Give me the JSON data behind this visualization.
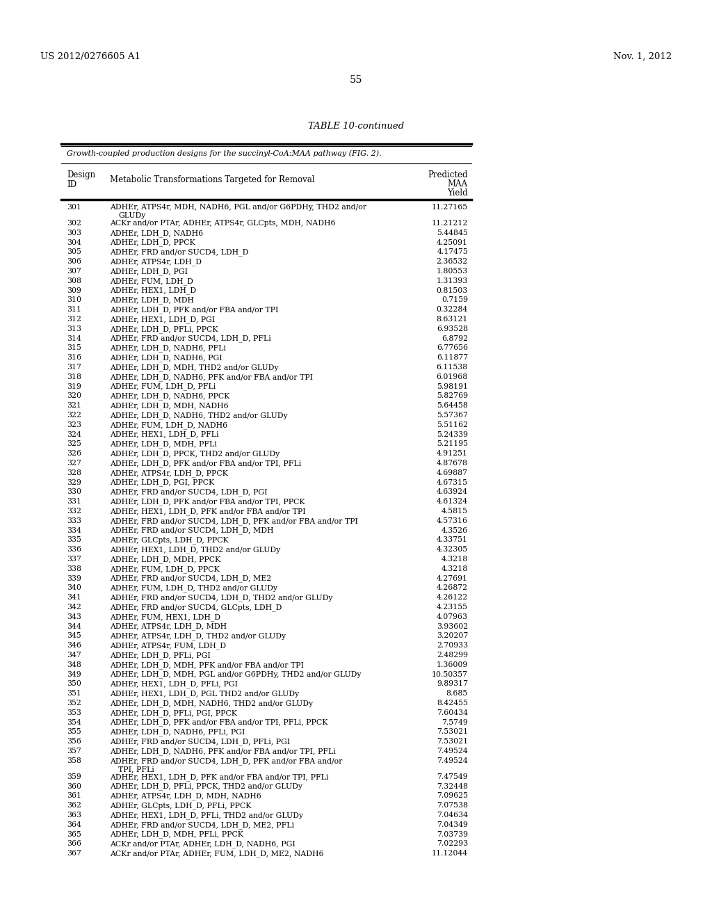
{
  "header_left": "US 2012/0276605 A1",
  "header_right": "Nov. 1, 2012",
  "page_number": "55",
  "table_title": "TABLE 10-continued",
  "table_subtitle": "Growth-coupled production designs for the succinyl-CoA:MAA pathway (FIG. 2).",
  "rows": [
    [
      "301",
      "ADHEr, ATPS4r, MDH, NADH6, PGL and/or G6PDHy, THD2 and/or",
      "GLUDy",
      "11.27165"
    ],
    [
      "302",
      "ACKr and/or PTAr, ADHEr, ATPS4r, GLCpts, MDH, NADH6",
      "",
      "11.21212"
    ],
    [
      "303",
      "ADHEr, LDH_D, NADH6",
      "",
      "5.44845"
    ],
    [
      "304",
      "ADHEr, LDH_D, PPCK",
      "",
      "4.25091"
    ],
    [
      "305",
      "ADHEr, FRD and/or SUCD4, LDH_D",
      "",
      "4.17475"
    ],
    [
      "306",
      "ADHEr, ATPS4r, LDH_D",
      "",
      "2.36532"
    ],
    [
      "307",
      "ADHEr, LDH_D, PGI",
      "",
      "1.80553"
    ],
    [
      "308",
      "ADHEr, FUM, LDH_D",
      "",
      "1.31393"
    ],
    [
      "309",
      "ADHEr, HEX1, LDH_D",
      "",
      "0.81503"
    ],
    [
      "310",
      "ADHEr, LDH_D, MDH",
      "",
      "0.7159"
    ],
    [
      "311",
      "ADHEr, LDH_D, PFK and/or FBA and/or TPI",
      "",
      "0.32284"
    ],
    [
      "312",
      "ADHEr, HEX1, LDH_D, PGI",
      "",
      "8.63121"
    ],
    [
      "313",
      "ADHEr, LDH_D, PFLi, PPCK",
      "",
      "6.93528"
    ],
    [
      "314",
      "ADHEr, FRD and/or SUCD4, LDH_D, PFLi",
      "",
      "6.8792"
    ],
    [
      "315",
      "ADHEr, LDH_D, NADH6, PFLi",
      "",
      "6.77656"
    ],
    [
      "316",
      "ADHEr, LDH_D, NADH6, PGI",
      "",
      "6.11877"
    ],
    [
      "317",
      "ADHEr, LDH_D, MDH, THD2 and/or GLUDy",
      "",
      "6.11538"
    ],
    [
      "318",
      "ADHEr, LDH_D, NADH6, PFK and/or FBA and/or TPI",
      "",
      "6.01968"
    ],
    [
      "319",
      "ADHEr, FUM, LDH_D, PFLi",
      "",
      "5.98191"
    ],
    [
      "320",
      "ADHEr, LDH_D, NADH6, PPCK",
      "",
      "5.82769"
    ],
    [
      "321",
      "ADHEr, LDH_D, MDH, NADH6",
      "",
      "5.64458"
    ],
    [
      "322",
      "ADHEr, LDH_D, NADH6, THD2 and/or GLUDy",
      "",
      "5.57367"
    ],
    [
      "323",
      "ADHEr, FUM, LDH_D, NADH6",
      "",
      "5.51162"
    ],
    [
      "324",
      "ADHEr, HEX1, LDH_D, PFLi",
      "",
      "5.24339"
    ],
    [
      "325",
      "ADHEr, LDH_D, MDH, PFLi",
      "",
      "5.21195"
    ],
    [
      "326",
      "ADHEr, LDH_D, PPCK, THD2 and/or GLUDy",
      "",
      "4.91251"
    ],
    [
      "327",
      "ADHEr, LDH_D, PFK and/or FBA and/or TPI, PFLi",
      "",
      "4.87678"
    ],
    [
      "328",
      "ADHEr, ATPS4r, LDH_D, PPCK",
      "",
      "4.69887"
    ],
    [
      "329",
      "ADHEr, LDH_D, PGI, PPCK",
      "",
      "4.67315"
    ],
    [
      "330",
      "ADHEr, FRD and/or SUCD4, LDH_D, PGI",
      "",
      "4.63924"
    ],
    [
      "331",
      "ADHEr, LDH_D, PFK and/or FBA and/or TPI, PPCK",
      "",
      "4.61324"
    ],
    [
      "332",
      "ADHEr, HEX1, LDH_D, PFK and/or FBA and/or TPI",
      "",
      "4.5815"
    ],
    [
      "333",
      "ADHEr, FRD and/or SUCD4, LDH_D, PFK and/or FBA and/or TPI",
      "",
      "4.57316"
    ],
    [
      "334",
      "ADHEr, FRD and/or SUCD4, LDH_D, MDH",
      "",
      "4.3526"
    ],
    [
      "335",
      "ADHEr, GLCpts, LDH_D, PPCK",
      "",
      "4.33751"
    ],
    [
      "336",
      "ADHEr, HEX1, LDH_D, THD2 and/or GLUDy",
      "",
      "4.32305"
    ],
    [
      "337",
      "ADHEr, LDH_D, MDH, PPCK",
      "",
      "4.3218"
    ],
    [
      "338",
      "ADHEr, FUM, LDH_D, PPCK",
      "",
      "4.3218"
    ],
    [
      "339",
      "ADHEr, FRD and/or SUCD4, LDH_D, ME2",
      "",
      "4.27691"
    ],
    [
      "340",
      "ADHEr, FUM, LDH_D, THD2 and/or GLUDy",
      "",
      "4.26872"
    ],
    [
      "341",
      "ADHEr, FRD and/or SUCD4, LDH_D, THD2 and/or GLUDy",
      "",
      "4.26122"
    ],
    [
      "342",
      "ADHEr, FRD and/or SUCD4, GLCpts, LDH_D",
      "",
      "4.23155"
    ],
    [
      "343",
      "ADHEr, FUM, HEX1, LDH_D",
      "",
      "4.07963"
    ],
    [
      "344",
      "ADHEr, ATPS4r, LDH_D, MDH",
      "",
      "3.93602"
    ],
    [
      "345",
      "ADHEr, ATPS4r, LDH_D, THD2 and/or GLUDy",
      "",
      "3.20207"
    ],
    [
      "346",
      "ADHEr, ATPS4r, FUM, LDH_D",
      "",
      "2.70933"
    ],
    [
      "347",
      "ADHEr, LDH_D, PFLi, PGI",
      "",
      "2.48299"
    ],
    [
      "348",
      "ADHEr, LDH_D, MDH, PFK and/or FBA and/or TPI",
      "",
      "1.36009"
    ],
    [
      "349",
      "ADHEr, LDH_D, MDH, PGL and/or G6PDHy, THD2 and/or GLUDy",
      "",
      "10.50357"
    ],
    [
      "350",
      "ADHEr, HEX1, LDH_D, PFLi, PGI",
      "",
      "9.89317"
    ],
    [
      "351",
      "ADHEr, HEX1, LDH_D, PGL THD2 and/or GLUDy",
      "",
      "8.685"
    ],
    [
      "352",
      "ADHEr, LDH_D, MDH, NADH6, THD2 and/or GLUDy",
      "",
      "8.42455"
    ],
    [
      "353",
      "ADHEr, LDH_D, PFLi, PGI, PPCK",
      "",
      "7.60434"
    ],
    [
      "354",
      "ADHEr, LDH_D, PFK and/or FBA and/or TPI, PFLi, PPCK",
      "",
      "7.5749"
    ],
    [
      "355",
      "ADHEr, LDH_D, NADH6, PFLi, PGI",
      "",
      "7.53021"
    ],
    [
      "356",
      "ADHEr, FRD and/or SUCD4, LDH_D, PFLi, PGI",
      "",
      "7.53021"
    ],
    [
      "357",
      "ADHEr, LDH_D, NADH6, PFK and/or FBA and/or TPI, PFLi",
      "",
      "7.49524"
    ],
    [
      "358",
      "ADHEr, FRD and/or SUCD4, LDH_D, PFK and/or FBA and/or",
      "TPI, PFLi",
      "7.49524"
    ],
    [
      "359",
      "ADHEr, HEX1, LDH_D, PFK and/or FBA and/or TPI, PFLi",
      "",
      "7.47549"
    ],
    [
      "360",
      "ADHEr, LDH_D, PFLi, PPCK, THD2 and/or GLUDy",
      "",
      "7.32448"
    ],
    [
      "361",
      "ADHEr, ATPS4r, LDH_D, MDH, NADH6",
      "",
      "7.09625"
    ],
    [
      "362",
      "ADHEr, GLCpts, LDH_D, PFLi, PPCK",
      "",
      "7.07538"
    ],
    [
      "363",
      "ADHEr, HEX1, LDH_D, PFLi, THD2 and/or GLUDy",
      "",
      "7.04634"
    ],
    [
      "364",
      "ADHEr, FRD and/or SUCD4, LDH_D, ME2, PFLi",
      "",
      "7.04349"
    ],
    [
      "365",
      "ADHEr, LDH_D, MDH, PFLi, PPCK",
      "",
      "7.03739"
    ],
    [
      "366",
      "ACKr and/or PTAr, ADHEr, LDH_D, NADH6, PGI",
      "",
      "7.02293"
    ],
    [
      "367",
      "ACKr and/or PTAr, ADHEr, FUM, LDH_D, ME2, NADH6",
      "",
      "11.12044"
    ]
  ]
}
